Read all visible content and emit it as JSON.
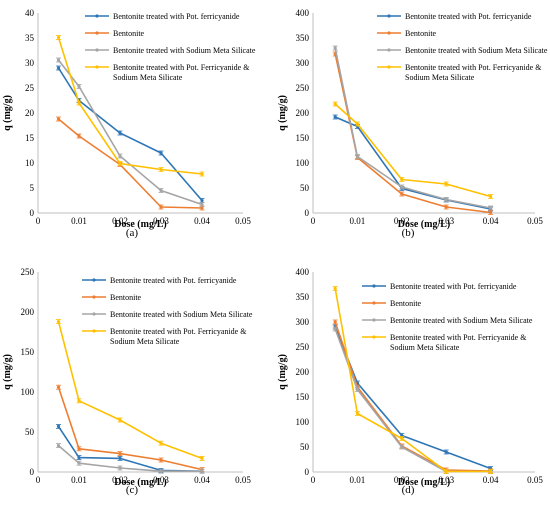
{
  "chart_data": [
    {
      "type": "line",
      "panel_label": "(a)",
      "xlabel": "Dose (mg/L)",
      "ylabel": "q (mg/g)",
      "xlim": [
        0,
        0.05
      ],
      "ylim": [
        0,
        40
      ],
      "xticks": [
        "0",
        "0.01",
        "0.02",
        "0.03",
        "0.04",
        "0.05"
      ],
      "yticks": [
        "0",
        "5",
        "10",
        "15",
        "20",
        "25",
        "30",
        "35",
        "40"
      ],
      "x": [
        0.005,
        0.01,
        0.02,
        0.03,
        0.04
      ],
      "grid": false,
      "legend": "top-right",
      "series": [
        {
          "name": "Bentonite treated with Pot. ferricyanide",
          "color": "#2E75B6",
          "values": [
            29,
            22.5,
            16,
            12,
            2.5
          ]
        },
        {
          "name": "Bentonite",
          "color": "#ED7D31",
          "values": [
            18.8,
            15.4,
            9.7,
            1.2,
            1
          ]
        },
        {
          "name": "Bentonite treated with Sodium Meta Silicate",
          "color": "#A5A5A5",
          "values": [
            30.6,
            25.3,
            11.4,
            4.5,
            1.7
          ]
        },
        {
          "name": "Bentonite treated with Pot. Ferricyanide & Sodium Meta Silicate",
          "color": "#FFC000",
          "values": [
            35.1,
            22,
            9.9,
            8.7,
            7.8
          ]
        }
      ]
    },
    {
      "type": "line",
      "panel_label": "(b)",
      "xlabel": "Dose (mg/L)",
      "ylabel": "q (mg/g)",
      "xlim": [
        0,
        0.05
      ],
      "ylim": [
        0,
        400
      ],
      "xticks": [
        "0",
        "0.01",
        "0.02",
        "0.03",
        "0.04",
        "0.05"
      ],
      "yticks": [
        "0",
        "50",
        "100",
        "150",
        "200",
        "250",
        "300",
        "350",
        "400"
      ],
      "x": [
        0.005,
        0.01,
        0.02,
        0.03,
        0.04
      ],
      "grid": false,
      "legend": "top-right",
      "series": [
        {
          "name": "Bentonite treated with Pot. ferricyanide",
          "color": "#2E75B6",
          "values": [
            192,
            173,
            49,
            26,
            8
          ]
        },
        {
          "name": "Bentonite",
          "color": "#ED7D31",
          "values": [
            318,
            111,
            38,
            12,
            1
          ]
        },
        {
          "name": "Bentonite treated with Sodium Meta Silicate",
          "color": "#A5A5A5",
          "values": [
            330,
            113,
            52,
            27,
            10
          ]
        },
        {
          "name": "Bentonite treated with Pot. Ferricyanide & Sodium Meta Silicate",
          "color": "#FFC000",
          "values": [
            218,
            178,
            67,
            58,
            33
          ]
        }
      ]
    },
    {
      "type": "line",
      "panel_label": "(c)",
      "xlabel": "Dose (mg/L)",
      "ylabel": "q (mg/g)",
      "xlim": [
        0,
        0.05
      ],
      "ylim": [
        0,
        250
      ],
      "xticks": [
        "0",
        "0.01",
        "0.02",
        "0.03",
        "0.04",
        "0.05"
      ],
      "yticks": [
        "0",
        "50",
        "100",
        "150",
        "200",
        "250"
      ],
      "x": [
        0.005,
        0.01,
        0.02,
        0.03,
        0.04
      ],
      "grid": false,
      "legend": "top-right",
      "series": [
        {
          "name": "Bentonite treated with Pot. ferricyanide",
          "color": "#2E75B6",
          "values": [
            57,
            18,
            17,
            2,
            1
          ]
        },
        {
          "name": "Bentonite",
          "color": "#ED7D31",
          "values": [
            106,
            29,
            23,
            15,
            3
          ]
        },
        {
          "name": "Bentonite treated with Sodium Meta Silicate",
          "color": "#A5A5A5",
          "values": [
            33,
            11,
            5,
            1,
            1
          ]
        },
        {
          "name": "Bentonite treated with Pot. Ferricyanide & Sodium Meta Silicate",
          "color": "#FFC000",
          "values": [
            188,
            89,
            65,
            36,
            17
          ]
        }
      ]
    },
    {
      "type": "line",
      "panel_label": "(d)",
      "xlabel": "Dose (mg/L)",
      "ylabel": "q (mg/g)",
      "xlim": [
        0,
        0.05
      ],
      "ylim": [
        0,
        400
      ],
      "xticks": [
        "0",
        "0.01",
        "0.02",
        "0.03",
        "0.04",
        "0.05"
      ],
      "yticks": [
        "0",
        "50",
        "100",
        "150",
        "200",
        "250",
        "300",
        "350",
        "400"
      ],
      "x": [
        0.005,
        0.01,
        0.02,
        0.03,
        0.04
      ],
      "grid": false,
      "legend": "top-right",
      "series": [
        {
          "name": "Bentonite treated with Pot. ferricyanide",
          "color": "#2E75B6",
          "values": [
            290,
            178,
            73,
            40,
            7
          ]
        },
        {
          "name": "Bentonite",
          "color": "#ED7D31",
          "values": [
            300,
            170,
            52,
            4,
            2
          ]
        },
        {
          "name": "Bentonite treated with Sodium Meta Silicate",
          "color": "#A5A5A5",
          "values": [
            286,
            165,
            50,
            1,
            1
          ]
        },
        {
          "name": "Bentonite treated with Pot. Ferricyanide & Sodium Meta Silicate",
          "color": "#FFC000",
          "values": [
            367,
            117,
            67,
            1,
            1
          ]
        }
      ]
    }
  ]
}
